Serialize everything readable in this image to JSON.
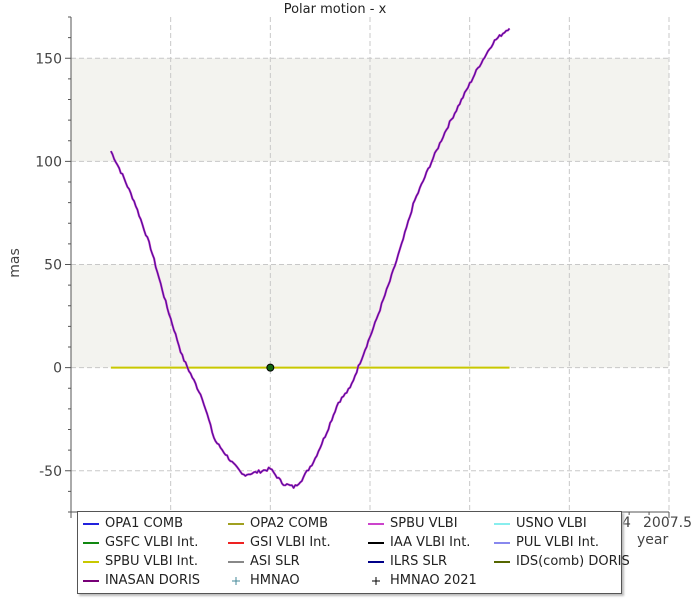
{
  "chart_data": {
    "type": "line",
    "title": "Polar motion - x",
    "xlabel": "year",
    "ylabel": "mas",
    "xlim": [
      2006.0,
      2007.5
    ],
    "ylim": [
      -70,
      170
    ],
    "yticks": [
      -50,
      0,
      50,
      100,
      150
    ],
    "yticks_labels": [
      "-50",
      "0",
      "50",
      "100",
      "150"
    ],
    "xtick_visible_labels": [
      "4",
      "2007.5"
    ],
    "grid": true,
    "legend_position": "bottom",
    "series": [
      {
        "name": "OPA1 COMB",
        "color": "#2222dd"
      },
      {
        "name": "OPA2 COMB",
        "color": "#a0a020"
      },
      {
        "name": "SPBU VLBI",
        "color": "#cc44cc"
      },
      {
        "name": "USNO VLBI",
        "color": "#88eeee"
      },
      {
        "name": "GSFC VLBI Int.",
        "color": "#118811"
      },
      {
        "name": "GSI VLBI Int.",
        "color": "#ee2222"
      },
      {
        "name": "IAA VLBI Int.",
        "color": "#000000"
      },
      {
        "name": "PUL VLBI Int.",
        "color": "#8888ee"
      },
      {
        "name": "SPBU VLBI Int.",
        "color": "#c8c800"
      },
      {
        "name": "ASI SLR",
        "color": "#888888"
      },
      {
        "name": "ILRS SLR",
        "color": "#000088"
      },
      {
        "name": "IDS(comb) DORIS",
        "color": "#556600"
      },
      {
        "name": "INASAN DORIS",
        "color": "#770077"
      },
      {
        "name": "HMNAO",
        "color": "#448899"
      },
      {
        "name": "HMNAO 2021",
        "color": "#000000"
      }
    ],
    "curve": {
      "x": [
        2006.1,
        2006.13,
        2006.16,
        2006.2,
        2006.24,
        2006.28,
        2006.3,
        2006.33,
        2006.36,
        2006.4,
        2006.43,
        2006.46,
        2006.5,
        2006.53,
        2006.56,
        2006.58,
        2006.61,
        2006.64,
        2006.67,
        2006.7,
        2006.73,
        2006.76,
        2006.8,
        2006.83,
        2006.86,
        2006.9,
        2006.94,
        2006.98,
        2007.02,
        2007.06,
        2007.1
      ],
      "y": [
        105,
        93,
        80,
        58,
        30,
        5,
        -3,
        -15,
        -35,
        -45,
        -52,
        -51,
        -49,
        -56,
        -58,
        -54,
        -45,
        -32,
        -17,
        -10,
        5,
        20,
        42,
        60,
        80,
        98,
        115,
        130,
        145,
        158,
        165
      ]
    },
    "flat_series_y": 0,
    "marker": {
      "x": 2006.5,
      "y": 0
    }
  }
}
